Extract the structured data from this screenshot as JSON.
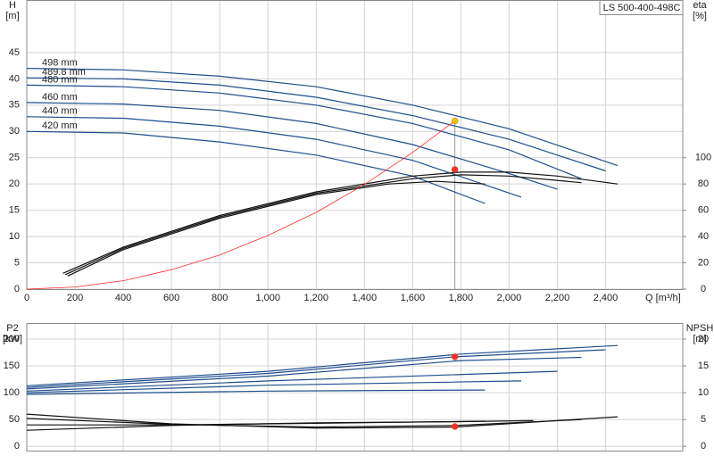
{
  "chart_data": [
    {
      "type": "line",
      "title": "LS 500-400-498C",
      "ylabel": [
        "H",
        "[m]"
      ],
      "y2label": [
        "eta",
        "[%]"
      ],
      "xlabel": "Q [m³/h]",
      "xlim": [
        0,
        2720
      ],
      "ylim": [
        0,
        55
      ],
      "y2lim": [
        0,
        220
      ],
      "grid": true,
      "xticks": [
        0,
        200,
        400,
        600,
        800,
        {
          "value": 1000,
          "label": "1,000"
        },
        {
          "value": 1200,
          "label": "1,200"
        },
        {
          "value": 1400,
          "label": "1,400"
        },
        {
          "value": 1600,
          "label": "1,600"
        },
        {
          "value": 1800,
          "label": "1,800"
        },
        {
          "value": 2000,
          "label": "2,000"
        },
        {
          "value": 2200,
          "label": "2,200"
        },
        {
          "value": 2400,
          "label": "2,400"
        }
      ],
      "yticks": [
        0,
        5,
        10,
        15,
        20,
        25,
        30,
        35,
        40,
        45
      ],
      "y2ticks": [
        0,
        20,
        40,
        60,
        80,
        100
      ],
      "series": [
        {
          "name": "498 mm",
          "color": "#1f4e8c",
          "x": [
            0,
            400,
            800,
            1200,
            1600,
            2000,
            2450
          ],
          "values": [
            42,
            41.7,
            40.5,
            38.5,
            35,
            30.5,
            23.5
          ]
        },
        {
          "name": "489.8 mm",
          "color": "#1f4e8c",
          "x": [
            0,
            400,
            800,
            1200,
            1600,
            2000,
            2400
          ],
          "values": [
            40.2,
            40,
            38.8,
            36.5,
            33,
            28.5,
            22.5
          ]
        },
        {
          "name": "480 mm",
          "color": "#1f4e8c",
          "x": [
            0,
            400,
            800,
            1200,
            1600,
            2000,
            2300
          ],
          "values": [
            38.8,
            38.5,
            37.3,
            35,
            31.5,
            26.5,
            21
          ]
        },
        {
          "name": "460 mm",
          "color": "#1f4e8c",
          "x": [
            0,
            400,
            800,
            1200,
            1600,
            2000,
            2200
          ],
          "values": [
            35.5,
            35.2,
            34,
            31.5,
            27.5,
            22,
            19
          ]
        },
        {
          "name": "440 mm",
          "color": "#1f4e8c",
          "x": [
            0,
            400,
            800,
            1200,
            1600,
            2050
          ],
          "values": [
            32.8,
            32.5,
            31,
            28.5,
            24.5,
            17.5
          ]
        },
        {
          "name": "420 mm",
          "color": "#1f4e8c",
          "x": [
            0,
            400,
            800,
            1200,
            1600,
            1900
          ],
          "values": [
            30,
            29.7,
            28,
            25.5,
            21.5,
            16.3
          ]
        },
        {
          "color": "#111111",
          "axis": "y2",
          "x": [
            150,
            400,
            800,
            1200,
            1600,
            1800,
            2000,
            2200,
            2450
          ],
          "values": [
            12,
            32,
            56,
            74,
            86,
            89,
            89,
            86,
            80
          ]
        },
        {
          "color": "#111111",
          "axis": "y2",
          "x": [
            160,
            400,
            800,
            1200,
            1600,
            1800,
            2000,
            2300
          ],
          "values": [
            11,
            31,
            55,
            73,
            84,
            87,
            86,
            81
          ]
        },
        {
          "color": "#111111",
          "axis": "y2",
          "x": [
            170,
            400,
            800,
            1200,
            1500,
            1700,
            1900
          ],
          "values": [
            10,
            30,
            54,
            72,
            80,
            82,
            80
          ]
        },
        {
          "color": "#ff2a2a",
          "x": [
            0,
            200,
            400,
            600,
            800,
            1000,
            1200,
            1400,
            1600,
            1775
          ],
          "values": [
            0,
            0.4,
            1.6,
            3.7,
            6.5,
            10.2,
            14.6,
            19.9,
            26,
            32
          ]
        }
      ],
      "markers": [
        {
          "color": "#f5c400",
          "x": [
            1775
          ],
          "values": [
            32
          ]
        },
        {
          "color": "#ff2a2a",
          "axis": "y2",
          "x": [
            1775
          ],
          "values": [
            91
          ]
        }
      ],
      "vline": 1775
    },
    {
      "type": "line",
      "ylabel": [
        "P2",
        "[kW]"
      ],
      "y2label": [
        "NPSH",
        "[m]"
      ],
      "xlim": [
        0,
        2720
      ],
      "ylim": [
        -8,
        230
      ],
      "y2lim": [
        -0.8,
        23
      ],
      "grid": true,
      "xticks": [
        0,
        200,
        400,
        600,
        800,
        1000,
        1200,
        1400,
        1600,
        1800,
        2000,
        2200,
        2400
      ],
      "yticks": [
        0,
        50,
        100,
        150,
        200
      ],
      "y2ticks": [
        0,
        5,
        10,
        15,
        20
      ],
      "series": [
        {
          "color": "#1f4e8c",
          "x": [
            0,
            1000,
            1800,
            2450
          ],
          "values": [
            113,
            140,
            172,
            188
          ]
        },
        {
          "color": "#1f4e8c",
          "x": [
            0,
            1000,
            1775,
            2400
          ],
          "values": [
            110,
            136,
            167,
            180
          ]
        },
        {
          "color": "#1f4e8c",
          "x": [
            0,
            1000,
            1800,
            2300
          ],
          "values": [
            107,
            131,
            160,
            166
          ]
        },
        {
          "color": "#1f4e8c",
          "x": [
            0,
            1000,
            2200
          ],
          "values": [
            103,
            122,
            140
          ]
        },
        {
          "color": "#1f4e8c",
          "x": [
            0,
            1000,
            2050
          ],
          "values": [
            100,
            114,
            122
          ]
        },
        {
          "color": "#1f4e8c",
          "x": [
            0,
            1000,
            1900
          ],
          "values": [
            97,
            103,
            105
          ]
        },
        {
          "color": "#111111",
          "axis": "y2",
          "x": [
            0,
            600,
            1200,
            1775,
            2450
          ],
          "values": [
            6,
            4.2,
            3.4,
            3.6,
            5.5
          ]
        },
        {
          "color": "#111111",
          "axis": "y2",
          "x": [
            0,
            600,
            1200,
            1775,
            2300
          ],
          "values": [
            5.2,
            4.1,
            3.6,
            3.9,
            5
          ]
        },
        {
          "color": "#111111",
          "axis": "y2",
          "x": [
            0,
            600,
            1200,
            1775,
            2100
          ],
          "values": [
            3,
            3.9,
            4.4,
            4.6,
            4.8
          ]
        },
        {
          "color": "#111111",
          "axis": "y2",
          "x": [
            0,
            600,
            1200,
            1900
          ],
          "values": [
            4,
            4,
            4.3,
            4.7
          ]
        }
      ],
      "markers": [
        {
          "color": "#ff2a2a",
          "x": [
            1775
          ],
          "values": [
            167
          ]
        },
        {
          "color": "#ff2a2a",
          "axis": "y2",
          "x": [
            1775
          ],
          "values": [
            3.7
          ]
        }
      ]
    }
  ]
}
